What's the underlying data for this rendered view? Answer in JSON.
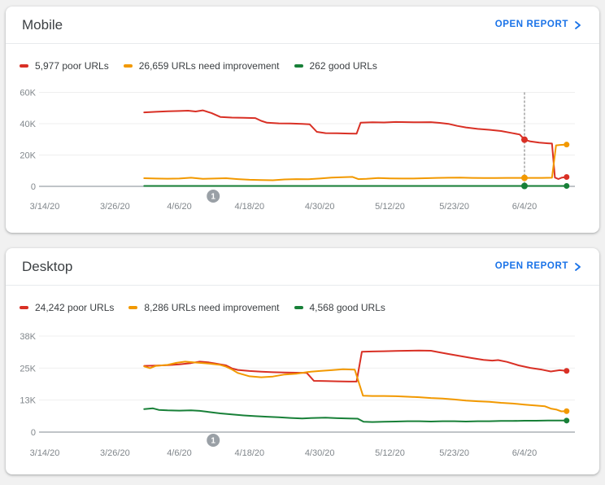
{
  "cards": [
    {
      "title": "Mobile",
      "action_label": "OPEN REPORT"
    },
    {
      "title": "Desktop",
      "action_label": "OPEN REPORT"
    }
  ],
  "colors": {
    "poor": "#d93025",
    "needs_improvement": "#f29900",
    "good": "#188038",
    "link": "#1a73e8",
    "tick_text": "#80868b",
    "grid": "#efefef",
    "axis": "#9aa0a6",
    "hover_line": "#757575",
    "annotation_badge": "#9aa0a6"
  },
  "chart_data": [
    {
      "device": "Mobile",
      "type": "line",
      "x_ticks": [
        {
          "label": "3/14/20",
          "day": 0
        },
        {
          "label": "3/26/20",
          "day": 12
        },
        {
          "label": "4/6/20",
          "day": 23
        },
        {
          "label": "4/18/20",
          "day": 35
        },
        {
          "label": "4/30/20",
          "day": 47
        },
        {
          "label": "5/12/20",
          "day": 59
        },
        {
          "label": "5/23/20",
          "day": 70
        },
        {
          "label": "6/4/20",
          "day": 82
        }
      ],
      "y_ticks": [
        {
          "label": "60K",
          "value": 60000
        },
        {
          "label": "40K",
          "value": 40000
        },
        {
          "label": "20K",
          "value": 20000
        },
        {
          "label": "0",
          "value": 0
        }
      ],
      "y_max": 60000,
      "series": [
        {
          "key": "poor",
          "legend_label": "5,977 poor URLs",
          "current": 5977,
          "color": "#d93025",
          "points": [
            [
              17,
              47200
            ],
            [
              19,
              47600
            ],
            [
              21,
              47900
            ],
            [
              23,
              48100
            ],
            [
              24.5,
              48300
            ],
            [
              25.8,
              47800
            ],
            [
              27,
              48500
            ],
            [
              28.5,
              46800
            ],
            [
              30,
              44300
            ],
            [
              32,
              43900
            ],
            [
              34,
              43800
            ],
            [
              36,
              43600
            ],
            [
              37,
              41800
            ],
            [
              38,
              40600
            ],
            [
              40,
              40200
            ],
            [
              42,
              40100
            ],
            [
              44,
              39900
            ],
            [
              45.3,
              39600
            ],
            [
              46.5,
              34800
            ],
            [
              48,
              34000
            ],
            [
              50,
              33900
            ],
            [
              52,
              33700
            ],
            [
              53.3,
              33600
            ],
            [
              54,
              40700
            ],
            [
              56,
              40900
            ],
            [
              58,
              40800
            ],
            [
              60,
              41100
            ],
            [
              62,
              41000
            ],
            [
              64,
              40900
            ],
            [
              66,
              41000
            ],
            [
              67.5,
              40500
            ],
            [
              69,
              39900
            ],
            [
              70.5,
              38600
            ],
            [
              72,
              37600
            ],
            [
              74,
              36700
            ],
            [
              76,
              36100
            ],
            [
              78,
              35300
            ],
            [
              80,
              33900
            ],
            [
              81.2,
              33100
            ],
            [
              82,
              29800
            ],
            [
              83,
              28700
            ],
            [
              84.5,
              27900
            ],
            [
              86,
              27500
            ],
            [
              86.7,
              27300
            ],
            [
              87.2,
              5600
            ],
            [
              87.8,
              4700
            ],
            [
              88.4,
              5600
            ],
            [
              89.2,
              5977
            ]
          ]
        },
        {
          "key": "needs-improvement",
          "legend_label": "26,659 URLs need improvement",
          "current": 26659,
          "color": "#f29900",
          "points": [
            [
              17,
              5200
            ],
            [
              19,
              5000
            ],
            [
              21,
              4900
            ],
            [
              23,
              5000
            ],
            [
              25,
              5500
            ],
            [
              27,
              4800
            ],
            [
              29,
              5000
            ],
            [
              31,
              5200
            ],
            [
              33,
              4600
            ],
            [
              35,
              4200
            ],
            [
              37,
              4000
            ],
            [
              39,
              3900
            ],
            [
              41,
              4400
            ],
            [
              43,
              4600
            ],
            [
              45,
              4500
            ],
            [
              47,
              5000
            ],
            [
              49,
              5600
            ],
            [
              51,
              5800
            ],
            [
              52.6,
              6000
            ],
            [
              53.6,
              4600
            ],
            [
              55,
              4800
            ],
            [
              57,
              5300
            ],
            [
              59,
              5100
            ],
            [
              61,
              5000
            ],
            [
              63,
              5000
            ],
            [
              65,
              5200
            ],
            [
              67,
              5400
            ],
            [
              69,
              5500
            ],
            [
              71,
              5600
            ],
            [
              73,
              5400
            ],
            [
              75,
              5300
            ],
            [
              77,
              5300
            ],
            [
              79,
              5400
            ],
            [
              81,
              5400
            ],
            [
              83,
              5400
            ],
            [
              85,
              5400
            ],
            [
              86.7,
              5500
            ],
            [
              87.4,
              26200
            ],
            [
              88.3,
              26500
            ],
            [
              89.2,
              26659
            ]
          ]
        },
        {
          "key": "good",
          "legend_label": "262 good URLs",
          "current": 262,
          "color": "#188038",
          "points": [
            [
              17,
              250
            ],
            [
              40,
              250
            ],
            [
              60,
              260
            ],
            [
              89.2,
              262
            ]
          ]
        }
      ],
      "hover": {
        "day": 82,
        "values": [
          29800,
          5400,
          260
        ]
      },
      "annotations": [
        {
          "label": "1",
          "day": 28.8
        }
      ]
    },
    {
      "device": "Desktop",
      "type": "line",
      "x_ticks": [
        {
          "label": "3/14/20",
          "day": 0
        },
        {
          "label": "3/26/20",
          "day": 12
        },
        {
          "label": "4/6/20",
          "day": 23
        },
        {
          "label": "4/18/20",
          "day": 35
        },
        {
          "label": "4/30/20",
          "day": 47
        },
        {
          "label": "5/12/20",
          "day": 59
        },
        {
          "label": "5/23/20",
          "day": 70
        },
        {
          "label": "6/4/20",
          "day": 82
        }
      ],
      "y_ticks": [
        {
          "label": "38K",
          "value": 38000
        },
        {
          "label": "25K",
          "value": 25333
        },
        {
          "label": "13K",
          "value": 12667
        },
        {
          "label": "0",
          "value": 0
        }
      ],
      "y_max": 38000,
      "series": [
        {
          "key": "poor",
          "legend_label": "24,242 poor URLs",
          "current": 24242,
          "color": "#d93025",
          "points": [
            [
              17,
              26200
            ],
            [
              19,
              26300
            ],
            [
              21,
              26500
            ],
            [
              23,
              26800
            ],
            [
              25,
              27300
            ],
            [
              26.5,
              27900
            ],
            [
              28,
              27600
            ],
            [
              29,
              27200
            ],
            [
              31,
              26400
            ],
            [
              32,
              25200
            ],
            [
              33,
              24600
            ],
            [
              35,
              24200
            ],
            [
              37,
              23900
            ],
            [
              39,
              23700
            ],
            [
              41,
              23600
            ],
            [
              43,
              23500
            ],
            [
              44.8,
              23400
            ],
            [
              46,
              20300
            ],
            [
              48,
              20200
            ],
            [
              50,
              20100
            ],
            [
              52,
              20000
            ],
            [
              53.3,
              20000
            ],
            [
              54.2,
              31800
            ],
            [
              56,
              31900
            ],
            [
              58,
              32000
            ],
            [
              60,
              32100
            ],
            [
              62,
              32200
            ],
            [
              64,
              32300
            ],
            [
              66,
              32200
            ],
            [
              67.2,
              31700
            ],
            [
              69,
              30900
            ],
            [
              71,
              30100
            ],
            [
              73,
              29300
            ],
            [
              75,
              28600
            ],
            [
              76.5,
              28300
            ],
            [
              77.5,
              28500
            ],
            [
              79,
              27800
            ],
            [
              81,
              26400
            ],
            [
              83,
              25400
            ],
            [
              85,
              24700
            ],
            [
              86.5,
              24000
            ],
            [
              88,
              24500
            ],
            [
              89.2,
              24242
            ]
          ]
        },
        {
          "key": "needs-improvement",
          "legend_label": "8,286 URLs need improvement",
          "current": 8286,
          "color": "#f29900",
          "points": [
            [
              17,
              26000
            ],
            [
              18,
              25300
            ],
            [
              19,
              26200
            ],
            [
              21,
              26600
            ],
            [
              22.5,
              27400
            ],
            [
              24,
              27900
            ],
            [
              26,
              27500
            ],
            [
              28,
              27100
            ],
            [
              30,
              26600
            ],
            [
              31,
              25900
            ],
            [
              32,
              24800
            ],
            [
              33,
              23400
            ],
            [
              35,
              22100
            ],
            [
              37,
              21700
            ],
            [
              39,
              22000
            ],
            [
              41,
              22800
            ],
            [
              43,
              23100
            ],
            [
              45,
              23800
            ],
            [
              47,
              24200
            ],
            [
              49,
              24500
            ],
            [
              51,
              24900
            ],
            [
              53,
              24700
            ],
            [
              54.4,
              14400
            ],
            [
              56,
              14300
            ],
            [
              58,
              14300
            ],
            [
              60,
              14200
            ],
            [
              62,
              14000
            ],
            [
              64,
              13800
            ],
            [
              66,
              13500
            ],
            [
              68,
              13300
            ],
            [
              70,
              12900
            ],
            [
              72,
              12500
            ],
            [
              74,
              12200
            ],
            [
              76,
              12000
            ],
            [
              78,
              11600
            ],
            [
              80,
              11300
            ],
            [
              82,
              10900
            ],
            [
              84,
              10500
            ],
            [
              85.5,
              10200
            ],
            [
              86.5,
              9300
            ],
            [
              87.5,
              8900
            ],
            [
              88.3,
              8200
            ],
            [
              89.2,
              8286
            ]
          ]
        },
        {
          "key": "good",
          "legend_label": "4,568 good URLs",
          "current": 4568,
          "color": "#188038",
          "points": [
            [
              17,
              9100
            ],
            [
              18.5,
              9400
            ],
            [
              19.5,
              8800
            ],
            [
              21,
              8600
            ],
            [
              23,
              8500
            ],
            [
              25,
              8600
            ],
            [
              26.5,
              8400
            ],
            [
              28,
              8000
            ],
            [
              30,
              7400
            ],
            [
              32,
              7000
            ],
            [
              34,
              6600
            ],
            [
              36,
              6300
            ],
            [
              38,
              6100
            ],
            [
              40,
              5900
            ],
            [
              42,
              5600
            ],
            [
              44,
              5400
            ],
            [
              46,
              5600
            ],
            [
              48,
              5700
            ],
            [
              50,
              5500
            ],
            [
              52,
              5400
            ],
            [
              53.5,
              5300
            ],
            [
              54.5,
              4100
            ],
            [
              56,
              4000
            ],
            [
              58,
              4100
            ],
            [
              60,
              4200
            ],
            [
              62,
              4300
            ],
            [
              64,
              4300
            ],
            [
              66,
              4200
            ],
            [
              68,
              4300
            ],
            [
              70,
              4300
            ],
            [
              72,
              4200
            ],
            [
              74,
              4300
            ],
            [
              76,
              4300
            ],
            [
              78,
              4400
            ],
            [
              80,
              4400
            ],
            [
              82,
              4500
            ],
            [
              84,
              4500
            ],
            [
              86,
              4600
            ],
            [
              88,
              4600
            ],
            [
              89.2,
              4568
            ]
          ]
        }
      ],
      "hover": null,
      "annotations": [
        {
          "label": "1",
          "day": 28.8
        }
      ]
    }
  ]
}
